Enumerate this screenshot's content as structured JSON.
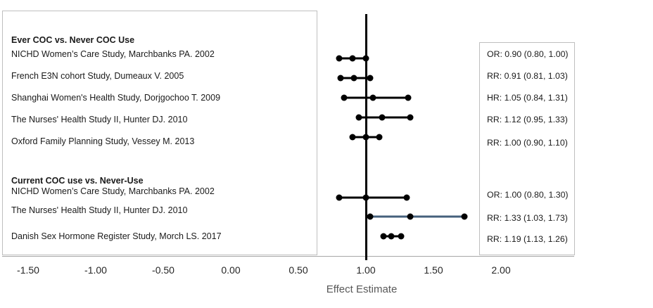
{
  "chart_data": {
    "type": "forest",
    "xlabel": "Effect Estimate",
    "x_ticks": [
      {
        "label": "-1.50",
        "value": -1.5
      },
      {
        "label": "-1.00",
        "value": -1.0
      },
      {
        "label": "-0.50",
        "value": -0.5
      },
      {
        "label": "0.00",
        "value": 0.0
      },
      {
        "label": "0.50",
        "value": 0.5
      },
      {
        "label": "1.00",
        "value": 1.0
      },
      {
        "label": "1.50",
        "value": 1.5
      },
      {
        "label": "2.00",
        "value": 2.0
      }
    ],
    "x_range_shown": [
      -1.5,
      2.0
    ],
    "reference_line_value": 1.0,
    "grid": false,
    "groups": [
      {
        "heading": "Ever COC vs. Never COC Use",
        "studies": [
          {
            "label": "NICHD Women’s Care Study, Marchbanks PA. 2002",
            "measure": "OR",
            "estimate": 0.9,
            "ci_lower": 0.8,
            "ci_upper": 1.0,
            "text": "OR: 0.90 (0.80, 1.00)",
            "highlight": false
          },
          {
            "label": "French E3N cohort Study, Dumeaux V. 2005",
            "measure": "RR",
            "estimate": 0.91,
            "ci_lower": 0.81,
            "ci_upper": 1.03,
            "text": "RR: 0.91 (0.81, 1.03)",
            "highlight": false
          },
          {
            "label": "Shanghai Women's Health Study, Dorjgochoo T. 2009",
            "measure": "HR",
            "estimate": 1.05,
            "ci_lower": 0.84,
            "ci_upper": 1.31,
            "text": "HR: 1.05 (0.84, 1.31)",
            "highlight": false
          },
          {
            "label": "The Nurses' Health Study II, Hunter DJ. 2010",
            "measure": "RR",
            "estimate": 1.12,
            "ci_lower": 0.95,
            "ci_upper": 1.33,
            "text": "RR: 1.12 (0.95, 1.33)",
            "highlight": false
          },
          {
            "label": "Oxford Family Planning Study, Vessey M. 2013",
            "measure": "RR",
            "estimate": 1.0,
            "ci_lower": 0.9,
            "ci_upper": 1.1,
            "text": "RR: 1.00 (0.90, 1.10)",
            "highlight": false
          }
        ]
      },
      {
        "heading": "Current COC use vs. Never-Use",
        "studies": [
          {
            "label": "NICHD Women’s Care Study, Marchbanks PA. 2002",
            "measure": "OR",
            "estimate": 1.0,
            "ci_lower": 0.8,
            "ci_upper": 1.3,
            "text": "OR: 1.00 (0.80, 1.30)",
            "highlight": false
          },
          {
            "label": "The Nurses' Health Study II, Hunter DJ. 2010",
            "measure": "RR",
            "estimate": 1.33,
            "ci_lower": 1.03,
            "ci_upper": 1.73,
            "text": "RR: 1.33 (1.03, 1.73)",
            "highlight": true
          },
          {
            "label": "Danish Sex Hormone Register Study, Morch LS. 2017",
            "measure": "RR",
            "estimate": 1.19,
            "ci_lower": 1.13,
            "ci_upper": 1.26,
            "text": "RR: 1.19 (1.13, 1.26)",
            "highlight": false
          }
        ]
      }
    ],
    "colors": {
      "marker": "#000000",
      "ci_line": "#000000",
      "highlight_ci_line": "#45607c",
      "reference_line": "#000000",
      "axis_line": "#a6a6a6",
      "box_border": "#bfbfbf",
      "label_text": "#1a1a1a",
      "tick_text": "#262626",
      "xlabel_text": "#595959"
    }
  }
}
